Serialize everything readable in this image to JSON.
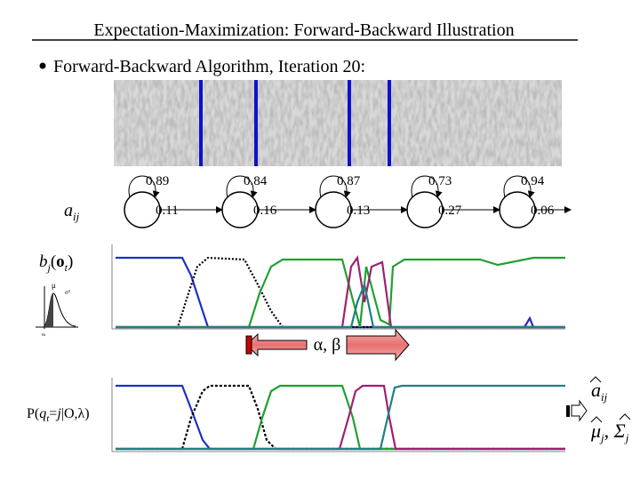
{
  "header": {
    "title": "Expectation-Maximization: Forward-Backward Illustration"
  },
  "bullet": "Forward-Backward Algorithm, Iteration 20:",
  "hmm": {
    "label": {
      "base": "a",
      "sub": "ij"
    },
    "self_loops": [
      "0.89",
      "0.84",
      "0.87",
      "0.73",
      "0.94"
    ],
    "transitions": [
      "0.11",
      "0.16",
      "0.13",
      "0.27",
      "0.06"
    ]
  },
  "emission": {
    "label": {
      "base": "b",
      "sub": "j",
      "open": "(",
      "obs": "o",
      "obs_sub": "t",
      "close": ")"
    },
    "gaussian": {
      "mean": "μ",
      "variance": "σ²",
      "obs": "o",
      "obs_sub": "t"
    }
  },
  "forward_backward": {
    "label": "α, β"
  },
  "posterior": {
    "label": {
      "prefix": "P(",
      "q": "q",
      "q_sub": "t",
      "eq": "=",
      "j": "j",
      "suffix": "|O,λ)"
    }
  },
  "updates": {
    "transition": {
      "base": "a",
      "sub": "ij"
    },
    "emission": {
      "mean": "μ",
      "mean_sub": "j",
      "sep": ", ",
      "cov": "Σ",
      "cov_sub": "j"
    }
  }
}
